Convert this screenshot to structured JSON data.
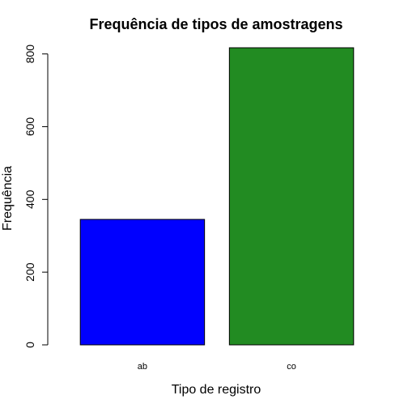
{
  "chart_data": {
    "type": "bar",
    "title": "Frequência de tipos de amostragens",
    "xlabel": "Tipo de registro",
    "ylabel": "Frequência",
    "categories": [
      "ab",
      "co"
    ],
    "values": [
      345,
      817
    ],
    "colors": [
      "#0000ff",
      "#228b22"
    ],
    "ylim": [
      0,
      817
    ],
    "yticks": [
      0,
      200,
      400,
      600,
      800
    ],
    "grid": false,
    "legend": "none"
  }
}
